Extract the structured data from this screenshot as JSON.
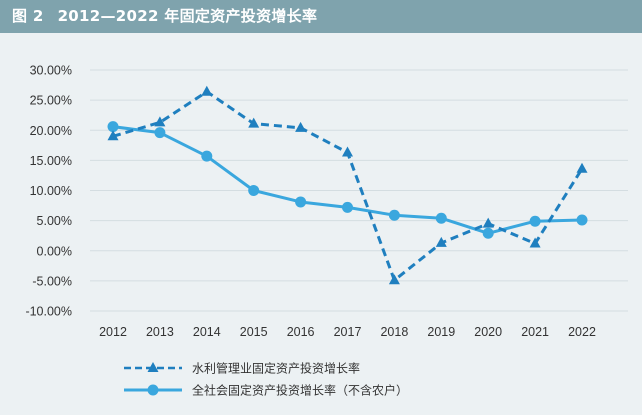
{
  "header": {
    "figure_label": "图 2",
    "title": "2012—2022 年固定资产投资增长率"
  },
  "colors": {
    "header_bg": "#7fa3ad",
    "series_dashed": "#1f7fbf",
    "series_solid": "#3aa7de",
    "grid": "#d4dde1"
  },
  "chart_data": {
    "type": "line",
    "title": "2012—2022 年固定资产投资增长率",
    "categories": [
      "2012",
      "2013",
      "2014",
      "2015",
      "2016",
      "2017",
      "2018",
      "2019",
      "2020",
      "2021",
      "2022"
    ],
    "y_ticks": [
      "30.00%",
      "25.00%",
      "20.00%",
      "15.00%",
      "10.00%",
      "5.00%",
      "0.00%",
      "-5.00%",
      "-10.00%"
    ],
    "ylim": [
      -10,
      30
    ],
    "grid": true,
    "legend_position": "bottom",
    "series": [
      {
        "name": "水利管理业固定资产投资增长率",
        "style": "dashed-triangle",
        "values": [
          19.0,
          21.3,
          26.4,
          21.1,
          20.4,
          16.3,
          -4.9,
          1.3,
          4.5,
          1.2,
          13.6
        ]
      },
      {
        "name": "全社会固定资产投资增长率（不含农户）",
        "style": "solid-circle",
        "values": [
          20.6,
          19.6,
          15.7,
          10.0,
          8.1,
          7.2,
          5.9,
          5.4,
          2.9,
          4.9,
          5.1
        ]
      }
    ]
  }
}
